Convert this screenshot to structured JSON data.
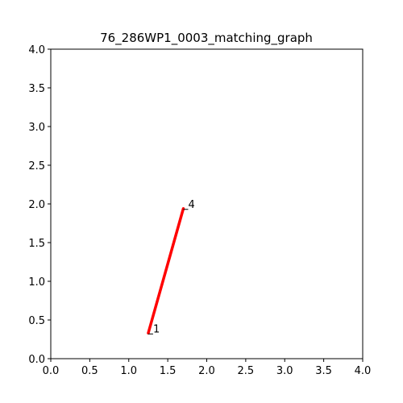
{
  "chart_data": {
    "type": "line",
    "title": "76_286WP1_0003_matching_graph",
    "xlabel": "",
    "ylabel": "",
    "xlim": [
      0.0,
      4.0
    ],
    "ylim": [
      0.0,
      4.0
    ],
    "grid": false,
    "x_ticks": [
      "0.0",
      "0.5",
      "1.0",
      "1.5",
      "2.0",
      "2.5",
      "3.0",
      "3.5",
      "4.0"
    ],
    "y_ticks": [
      "0.0",
      "0.5",
      "1.0",
      "1.5",
      "2.0",
      "2.5",
      "3.0",
      "3.5",
      "4.0"
    ],
    "nodes": [
      {
        "label": "1",
        "x": 1.25,
        "y": 0.33
      },
      {
        "label": "4",
        "x": 1.7,
        "y": 1.94
      }
    ],
    "edges": [
      {
        "from": "1",
        "to": "4",
        "color": "#ff0000"
      }
    ]
  }
}
